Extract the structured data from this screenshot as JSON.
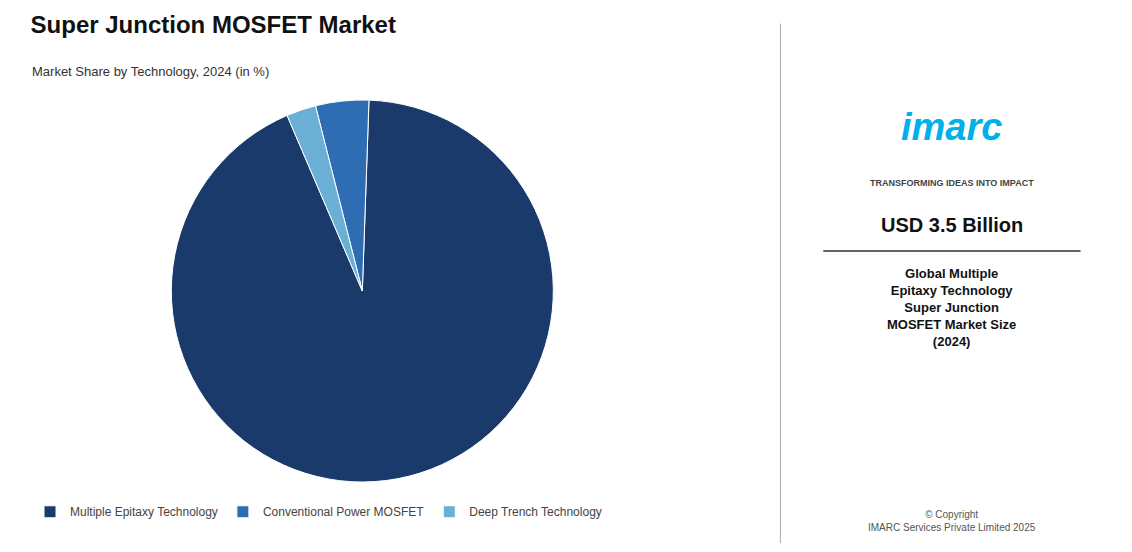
{
  "chart_data": {
    "type": "pie",
    "title": "Super Junction MOSFET Market",
    "subtitle": "Market Share by Technology, 2024 (in %)",
    "categories": [
      "Multiple Epitaxy Technology",
      "Conventional Power MOSFET",
      "Deep Trench Technology"
    ],
    "values": [
      93.0,
      4.5,
      2.5
    ],
    "colors": [
      "#1a3a6b",
      "#2e6db4",
      "#6ab0d4"
    ],
    "legend": "lower left",
    "annotations": [
      "imarc",
      "TRANSFORMING IDEAS INTO IMPACT",
      "USD 3.5 Billion",
      "Global Multiple\nEpitaxy Technology\nSuper Junction\nMOSFET Market Size\n(2024)",
      "© Copyright\nIMARC Services Private Limited 2025"
    ]
  }
}
